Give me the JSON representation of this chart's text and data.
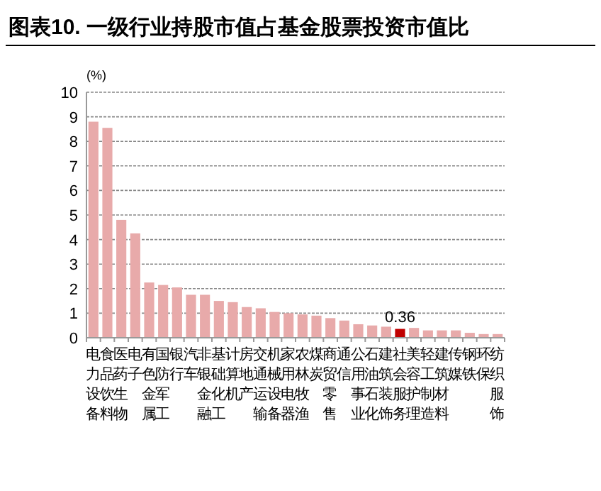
{
  "chart_data": {
    "type": "bar",
    "title": "图表10. 一级行业持股市值占基金股票投资市值比",
    "ylabel": "(%)",
    "categories": [
      "电力设备",
      "食品饮料",
      "医药生物",
      "电子",
      "有色金属",
      "国防军工",
      "银行",
      "汽车",
      "非银金融",
      "基础化工",
      "计算机",
      "房地产",
      "交通运输",
      "机械设备",
      "家用电器",
      "农林牧渔",
      "煤炭",
      "商贸零售",
      "通信",
      "公用事业",
      "石油石化",
      "建筑装饰",
      "社会服务",
      "美容护理",
      "轻工制造",
      "建筑材料",
      "传媒",
      "钢铁",
      "环保",
      "纺织服饰"
    ],
    "values": [
      8.8,
      8.55,
      4.8,
      4.25,
      2.25,
      2.15,
      2.05,
      1.75,
      1.75,
      1.5,
      1.45,
      1.25,
      1.2,
      1.05,
      1.0,
      0.95,
      0.9,
      0.8,
      0.7,
      0.55,
      0.5,
      0.45,
      0.36,
      0.4,
      0.3,
      0.3,
      0.3,
      0.2,
      0.15,
      0.15
    ],
    "colors": [
      "#e8aaaa",
      "#e8aaaa",
      "#e8aaaa",
      "#e8aaaa",
      "#e8aaaa",
      "#e8aaaa",
      "#e8aaaa",
      "#e8aaaa",
      "#e8aaaa",
      "#e8aaaa",
      "#e8aaaa",
      "#e8aaaa",
      "#e8aaaa",
      "#e8aaaa",
      "#e8aaaa",
      "#e8aaaa",
      "#e8aaaa",
      "#e8aaaa",
      "#e8aaaa",
      "#e8aaaa",
      "#e8aaaa",
      "#e8aaaa",
      "#c00000",
      "#e8aaaa",
      "#e8aaaa",
      "#e8aaaa",
      "#e8aaaa",
      "#e8aaaa",
      "#e8aaaa",
      "#e8aaaa"
    ],
    "value_labels": [
      null,
      null,
      null,
      null,
      null,
      null,
      null,
      null,
      null,
      null,
      null,
      null,
      null,
      null,
      null,
      null,
      null,
      null,
      null,
      null,
      null,
      null,
      "0.36",
      null,
      null,
      null,
      null,
      null,
      null,
      null
    ],
    "ylim": [
      0,
      10
    ],
    "yticks": [
      0,
      1,
      2,
      3,
      4,
      5,
      6,
      7,
      8,
      9,
      10
    ],
    "grid": "y"
  }
}
